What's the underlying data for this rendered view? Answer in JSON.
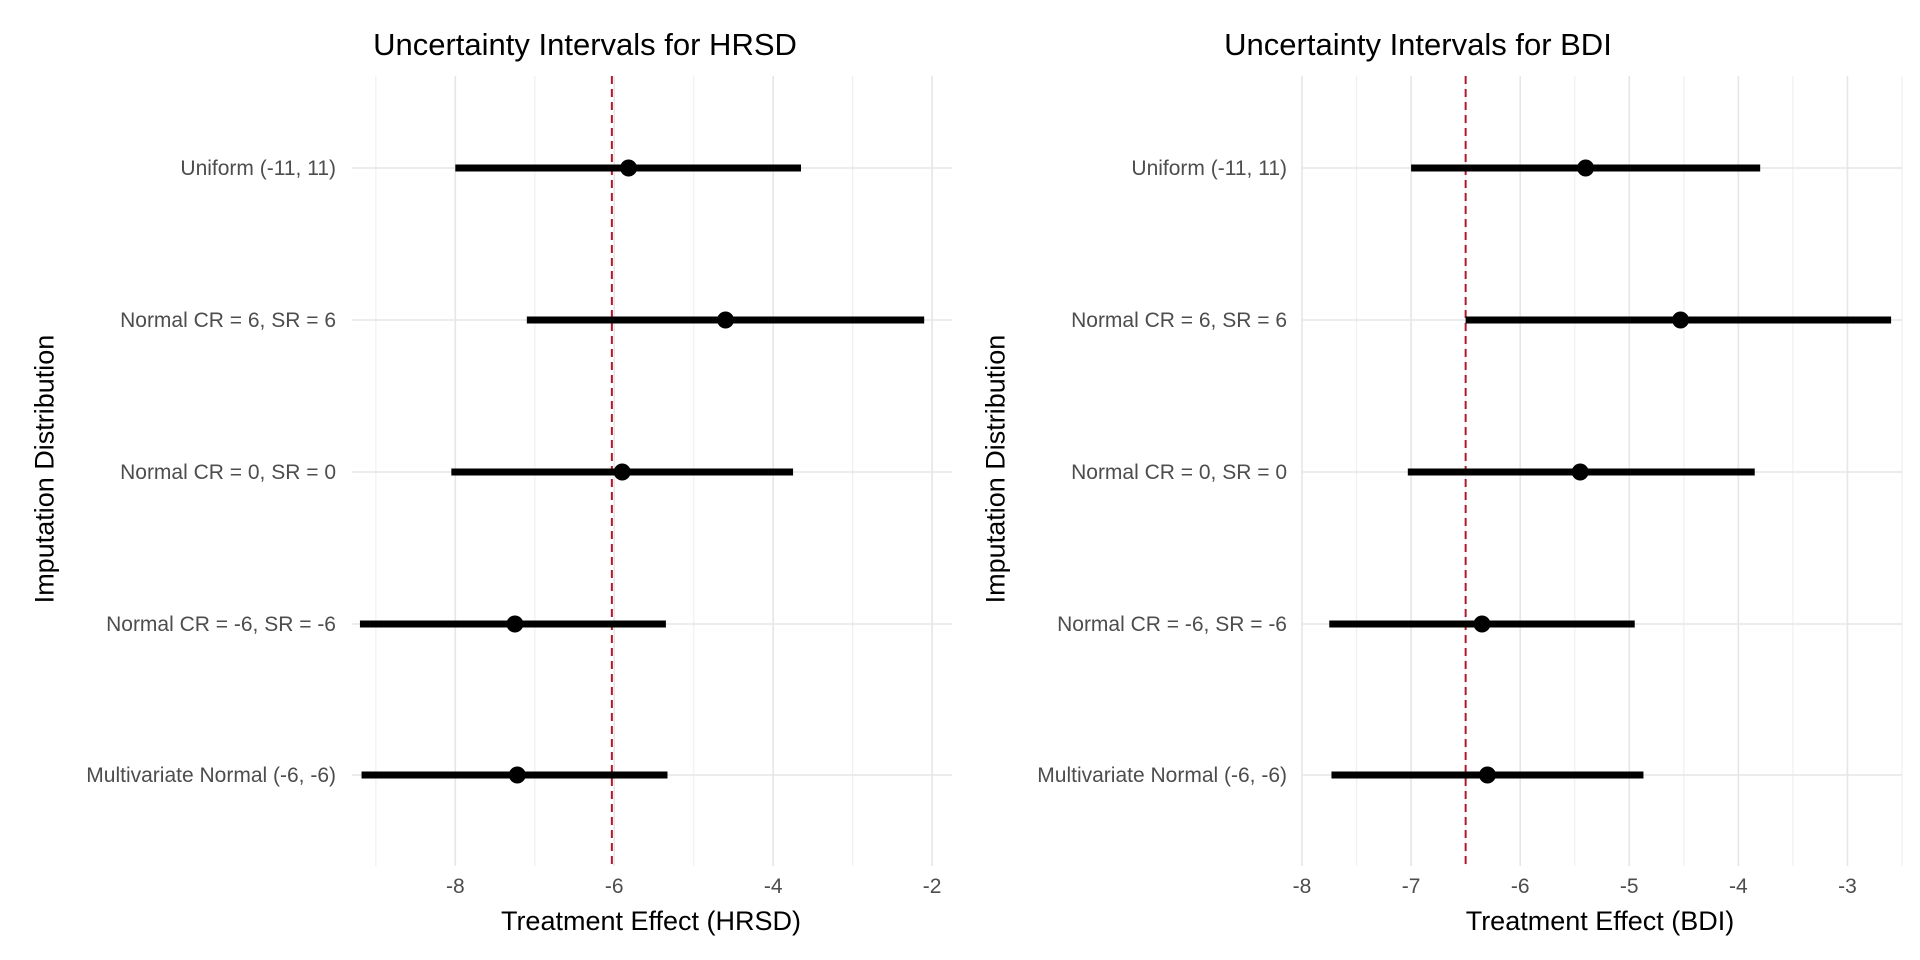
{
  "chart_data": [
    {
      "type": "scatter",
      "title": "Uncertainty Intervals for HRSD",
      "xlabel": "Treatment Effect (HRSD)",
      "ylabel": "Imputation Distribution",
      "xlim": [
        -9.3,
        -1.75
      ],
      "x_ticks": [
        -8,
        -6,
        -4,
        -2
      ],
      "x_tick_labels": [
        "-8",
        "-6",
        "-4",
        "-2"
      ],
      "grid": true,
      "reference_line": {
        "x": -6.03,
        "style": "dashed",
        "color": "#b2182b"
      },
      "categories": [
        "Uniform (-11, 11)",
        "Normal CR = 6, SR = 6",
        "Normal CR = 0, SR = 0",
        "Normal CR = -6, SR = -6",
        "Multivariate Normal (-6, -6)"
      ],
      "points": [
        {
          "category": "Uniform (-11, 11)",
          "estimate": -5.82,
          "lower": -8.0,
          "upper": -3.65
        },
        {
          "category": "Normal CR = 6, SR = 6",
          "estimate": -4.6,
          "lower": -7.1,
          "upper": -2.1
        },
        {
          "category": "Normal CR = 0, SR = 0",
          "estimate": -5.9,
          "lower": -8.05,
          "upper": -3.75
        },
        {
          "category": "Normal CR = -6, SR = -6",
          "estimate": -7.25,
          "lower": -9.2,
          "upper": -5.35
        },
        {
          "category": "Multivariate Normal (-6, -6)",
          "estimate": -7.22,
          "lower": -9.18,
          "upper": -5.33
        }
      ]
    },
    {
      "type": "scatter",
      "title": "Uncertainty Intervals for BDI",
      "xlabel": "Treatment Effect (BDI)",
      "ylabel": "Imputation Distribution",
      "xlim": [
        -8.0,
        -2.5
      ],
      "x_ticks": [
        -8,
        -7,
        -6,
        -5,
        -4,
        -3
      ],
      "x_tick_labels": [
        "-8",
        "-7",
        "-6",
        "-5",
        "-4",
        "-3"
      ],
      "grid": true,
      "reference_line": {
        "x": -6.5,
        "style": "dashed",
        "color": "#b2182b"
      },
      "categories": [
        "Uniform (-11, 11)",
        "Normal CR = 6, SR = 6",
        "Normal CR = 0, SR = 0",
        "Normal CR = -6, SR = -6",
        "Multivariate Normal (-6, -6)"
      ],
      "points": [
        {
          "category": "Uniform (-11, 11)",
          "estimate": -5.4,
          "lower": -7.0,
          "upper": -3.8
        },
        {
          "category": "Normal CR = 6, SR = 6",
          "estimate": -4.53,
          "lower": -6.5,
          "upper": -2.6
        },
        {
          "category": "Normal CR = 0, SR = 0",
          "estimate": -5.45,
          "lower": -7.03,
          "upper": -3.85
        },
        {
          "category": "Normal CR = -6, SR = -6",
          "estimate": -6.35,
          "lower": -7.75,
          "upper": -4.95
        },
        {
          "category": "Multivariate Normal (-6, -6)",
          "estimate": -6.3,
          "lower": -7.73,
          "upper": -4.87
        }
      ]
    }
  ]
}
